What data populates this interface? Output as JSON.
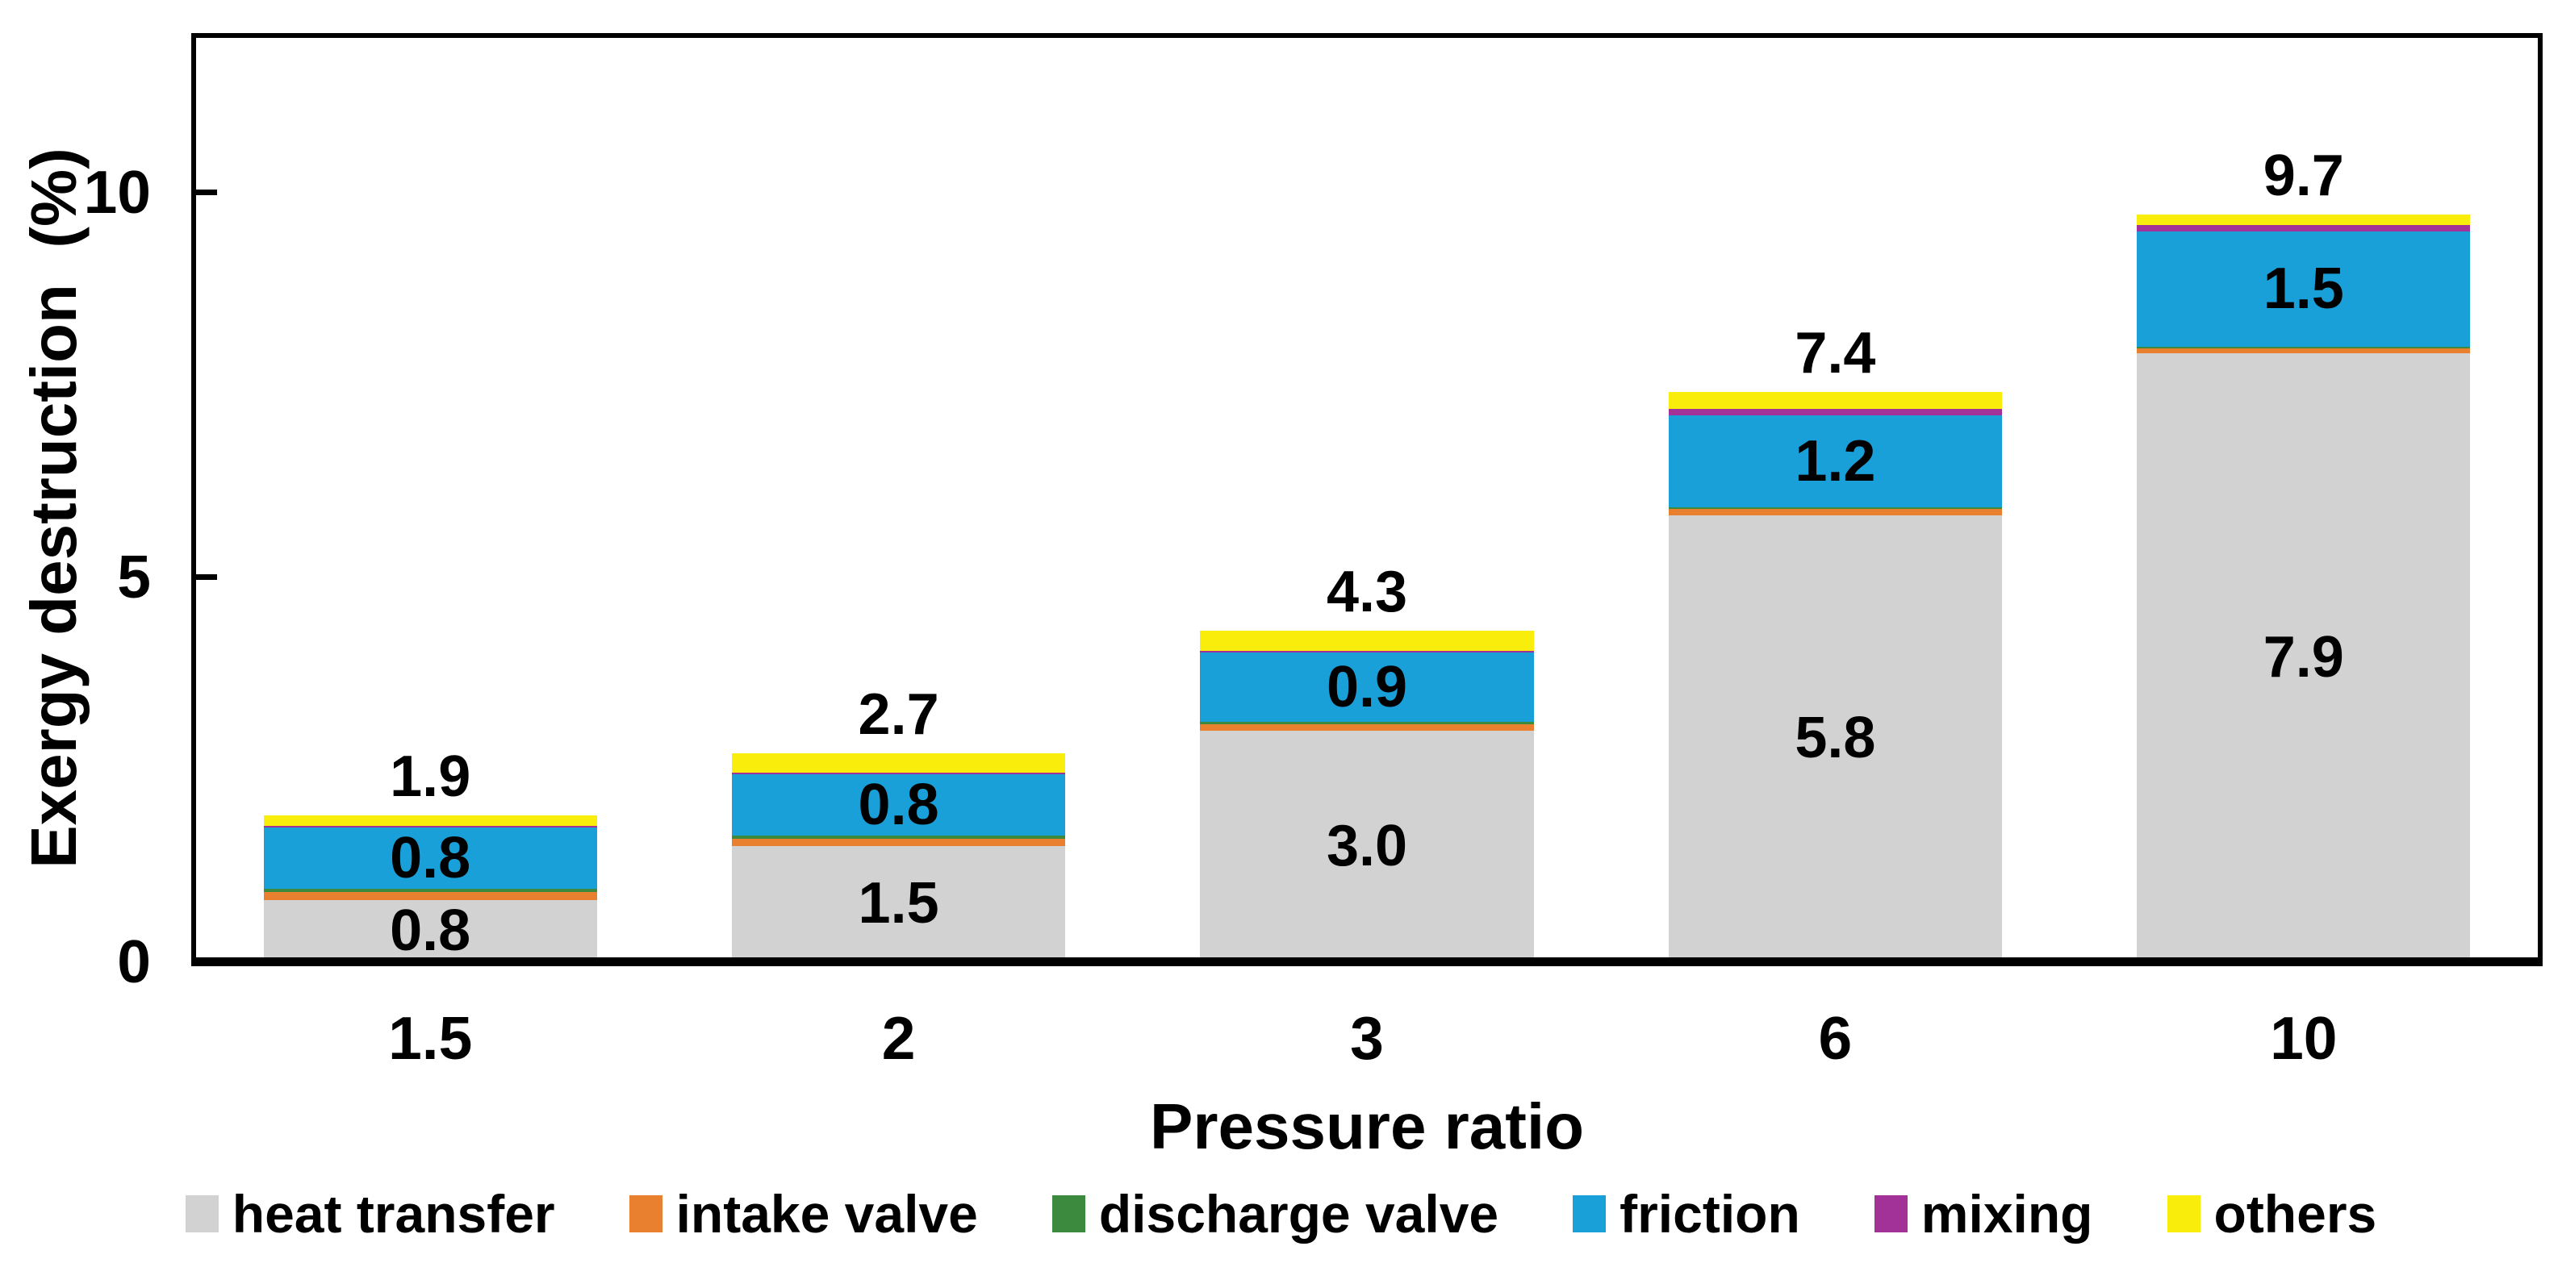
{
  "chart_data": {
    "type": "bar",
    "stacked": true,
    "xlabel": "Pressure ratio",
    "ylabel": "Exergy destruction  (%)",
    "categories": [
      "1.5",
      "2",
      "3",
      "6",
      "10"
    ],
    "y_ticks": [
      "0",
      "5",
      "10"
    ],
    "ylim": [
      0,
      12
    ],
    "grid": "off",
    "legend_position": "bottom",
    "series": [
      {
        "name": "heat transfer",
        "color": "#D2D2D2",
        "values": [
          0.8,
          1.5,
          3.0,
          5.8,
          7.9
        ],
        "labels": [
          "0.8",
          "1.5",
          "3.0",
          "5.8",
          "7.9"
        ]
      },
      {
        "name": "intake valve",
        "color": "#E8802F",
        "values": [
          0.1,
          0.09,
          0.08,
          0.08,
          0.07
        ],
        "labels": null
      },
      {
        "name": "discharge valve",
        "color": "#3B8A3E",
        "values": [
          0.04,
          0.04,
          0.03,
          0.02,
          0.02
        ],
        "labels": null
      },
      {
        "name": "friction",
        "color": "#1AA0D8",
        "values": [
          0.8,
          0.8,
          0.9,
          1.2,
          1.5
        ],
        "labels": [
          "0.8",
          "0.8",
          "0.9",
          "1.2",
          "1.5"
        ]
      },
      {
        "name": "mixing",
        "color": "#A23297",
        "values": [
          0.02,
          0.02,
          0.03,
          0.08,
          0.08
        ],
        "labels": null
      },
      {
        "name": "others",
        "color": "#F9ED0B",
        "values": [
          0.14,
          0.25,
          0.26,
          0.22,
          0.13
        ],
        "labels": null
      }
    ],
    "totals": [
      "1.9",
      "2.7",
      "4.3",
      "7.4",
      "9.7"
    ]
  }
}
